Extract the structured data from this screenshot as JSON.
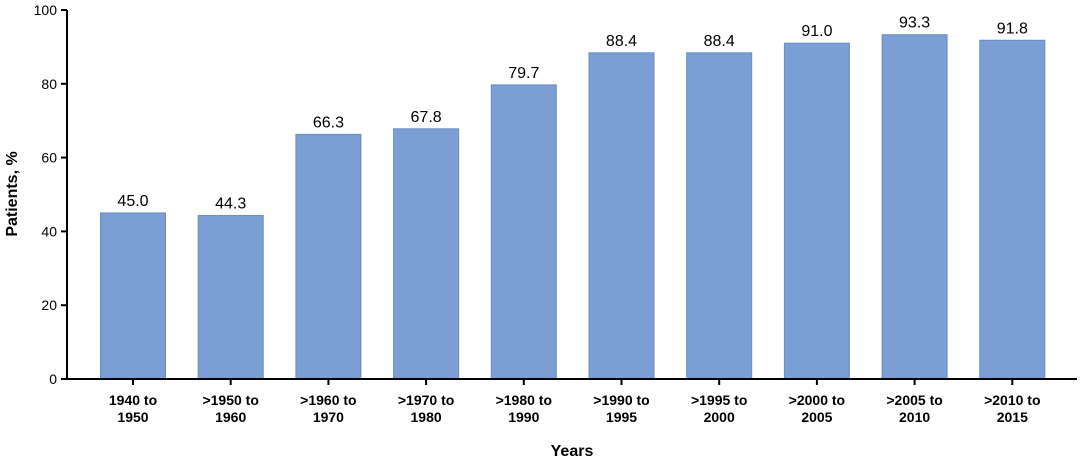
{
  "chart_data": {
    "type": "bar",
    "categories": [
      [
        "1940 to",
        "1950"
      ],
      [
        ">1950 to",
        "1960"
      ],
      [
        ">1960 to",
        "1970"
      ],
      [
        ">1970 to",
        "1980"
      ],
      [
        ">1980 to",
        "1990"
      ],
      [
        ">1990 to",
        "1995"
      ],
      [
        ">1995 to",
        "2000"
      ],
      [
        ">2000 to",
        "2005"
      ],
      [
        ">2005 to",
        "2010"
      ],
      [
        ">2010 to",
        "2015"
      ]
    ],
    "values": [
      45.0,
      44.3,
      66.3,
      67.8,
      79.7,
      88.4,
      88.4,
      91.0,
      93.3,
      91.8
    ],
    "value_labels": [
      "45.0",
      "44.3",
      "66.3",
      "67.8",
      "79.7",
      "88.4",
      "88.4",
      "91.0",
      "93.3",
      "91.8"
    ],
    "xlabel": "Years",
    "ylabel": "Patients, %",
    "ylim": [
      0,
      100
    ],
    "yticks": [
      "0",
      "20",
      "40",
      "60",
      "80",
      "100"
    ],
    "grid": false,
    "legend": "none",
    "bar_color": "#7b9fd4",
    "bar_edge_color": "#6a8cc4"
  }
}
